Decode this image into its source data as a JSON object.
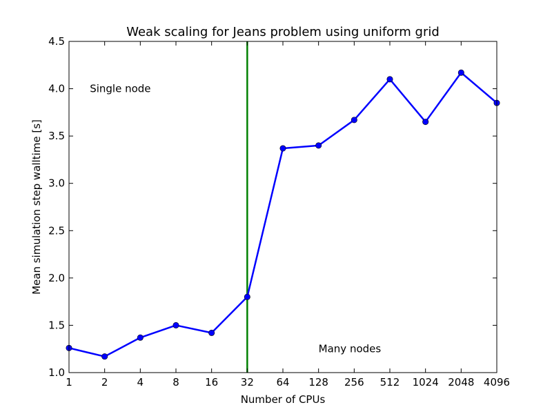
{
  "chart_data": {
    "type": "line",
    "title": "Weak scaling for Jeans problem using uniform grid",
    "xlabel": "Number of CPUs",
    "ylabel": "Mean simulation step walltime [s]",
    "x_scale": "log2",
    "x": [
      1,
      2,
      4,
      8,
      16,
      32,
      64,
      128,
      256,
      512,
      1024,
      2048,
      4096
    ],
    "x_tick_labels": [
      "1",
      "2",
      "4",
      "8",
      "16",
      "32",
      "64",
      "128",
      "256",
      "512",
      "1024",
      "2048",
      "4096"
    ],
    "ylim": [
      1.0,
      4.5
    ],
    "y_ticks": [
      1.0,
      1.5,
      2.0,
      2.5,
      3.0,
      3.5,
      4.0,
      4.5
    ],
    "y_tick_labels": [
      "1.0",
      "1.5",
      "2.0",
      "2.5",
      "3.0",
      "3.5",
      "4.0",
      "4.5"
    ],
    "series": [
      {
        "color": "#0000ff",
        "marker": "circle",
        "values": [
          1.26,
          1.17,
          1.37,
          1.5,
          1.42,
          1.8,
          3.37,
          3.4,
          3.67,
          4.1,
          3.65,
          4.17,
          3.85
        ]
      }
    ],
    "vertical_line": {
      "x": 32,
      "color": "#008000"
    },
    "annotations": [
      {
        "text": "Single node",
        "x": 1.5,
        "y": 4.0
      },
      {
        "text": "Many nodes",
        "x": 128,
        "y": 1.25
      }
    ],
    "grid": false,
    "legend": "none"
  }
}
